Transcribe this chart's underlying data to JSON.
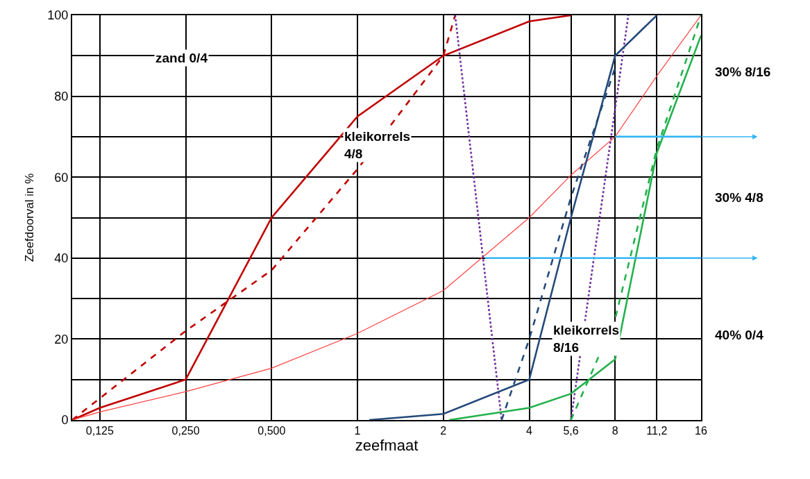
{
  "chart_data": {
    "type": "line",
    "xlabel": "zeefmaat",
    "ylabel": "Zeefdoorval in %",
    "log": "x",
    "xlim": [
      0.1,
      16
    ],
    "ylim": [
      0,
      100
    ],
    "xticks": [
      {
        "value": 0.125,
        "label": "0,125"
      },
      {
        "value": 0.25,
        "label": "0,250"
      },
      {
        "value": 0.5,
        "label": "0,500"
      },
      1,
      2,
      4,
      {
        "value": 5.6,
        "label": "5,6"
      },
      8,
      {
        "value": 11.2,
        "label": "11,2"
      },
      16
    ],
    "yticks": [
      0,
      {
        "value": 10,
        "label": null
      },
      20,
      {
        "value": 30,
        "label": null
      },
      40,
      {
        "value": 50,
        "label": null
      },
      60,
      {
        "value": 70,
        "label": null
      },
      80,
      {
        "value": 90,
        "label": null
      },
      100
    ],
    "grid": true,
    "marker": "none",
    "series": [
      {
        "color": "#c00000",
        "line_style": "solid",
        "x": [
          0.1,
          0.125,
          0.25,
          0.5,
          1,
          2,
          4,
          5.6
        ],
        "values": [
          0,
          3,
          10,
          50,
          75,
          90,
          98.5,
          100
        ]
      },
      {
        "color": "#c00000",
        "line_style": "dashed",
        "x": [
          0.1,
          0.25,
          0.5,
          1,
          2,
          2.2
        ],
        "values": [
          0,
          22,
          37,
          62,
          90,
          100
        ]
      },
      {
        "color": "#ff4040",
        "line_style": "solid",
        "x": [
          0.1,
          0.125,
          0.25,
          0.5,
          1,
          2,
          4,
          5.6,
          8,
          11.2,
          16
        ],
        "values": [
          0,
          2,
          7,
          12.8,
          21.4,
          32,
          50,
          60.5,
          70,
          85,
          100
        ]
      },
      {
        "color": "#7030a0",
        "line_style": "dotted",
        "x": [
          2.2,
          3.2
        ],
        "values": [
          100,
          0
        ]
      },
      {
        "color": "#7030a0",
        "line_style": "dotted",
        "x": [
          5.6,
          8.9
        ],
        "values": [
          0,
          100
        ]
      },
      {
        "color": "#254a7a",
        "line_style": "solid",
        "x": [
          1.1,
          2,
          4,
          5.6,
          8,
          11.2
        ],
        "values": [
          0,
          1.5,
          10,
          50,
          90,
          100
        ]
      },
      {
        "color": "#254a7a",
        "line_style": "dashed",
        "x": [
          3.2,
          4,
          5.6,
          8
        ],
        "values": [
          0,
          20,
          55,
          87
        ]
      },
      {
        "color": "#22b14c",
        "line_style": "solid",
        "x": [
          2.1,
          4,
          5.6,
          8,
          11.2,
          16
        ],
        "values": [
          0,
          3,
          6.5,
          15,
          66,
          95
        ]
      },
      {
        "color": "#22b14c",
        "line_style": "dashed",
        "x": [
          5.6,
          8,
          11.2,
          16
        ],
        "values": [
          0,
          25,
          67,
          100
        ]
      },
      {
        "color": "#33b5f5",
        "line_style": "solid",
        "x": [
          8,
          16
        ],
        "values": [
          70,
          70
        ]
      },
      {
        "color": "#33b5f5",
        "line_style": "solid",
        "x": [
          2.8,
          16
        ],
        "values": [
          40,
          40
        ]
      }
    ],
    "annotations": [
      "zand 0/4",
      "kleikorrels 4/8",
      "kleikorrels 8/16",
      "30% 8/16",
      "30% 4/8",
      "40% 0/4"
    ]
  }
}
